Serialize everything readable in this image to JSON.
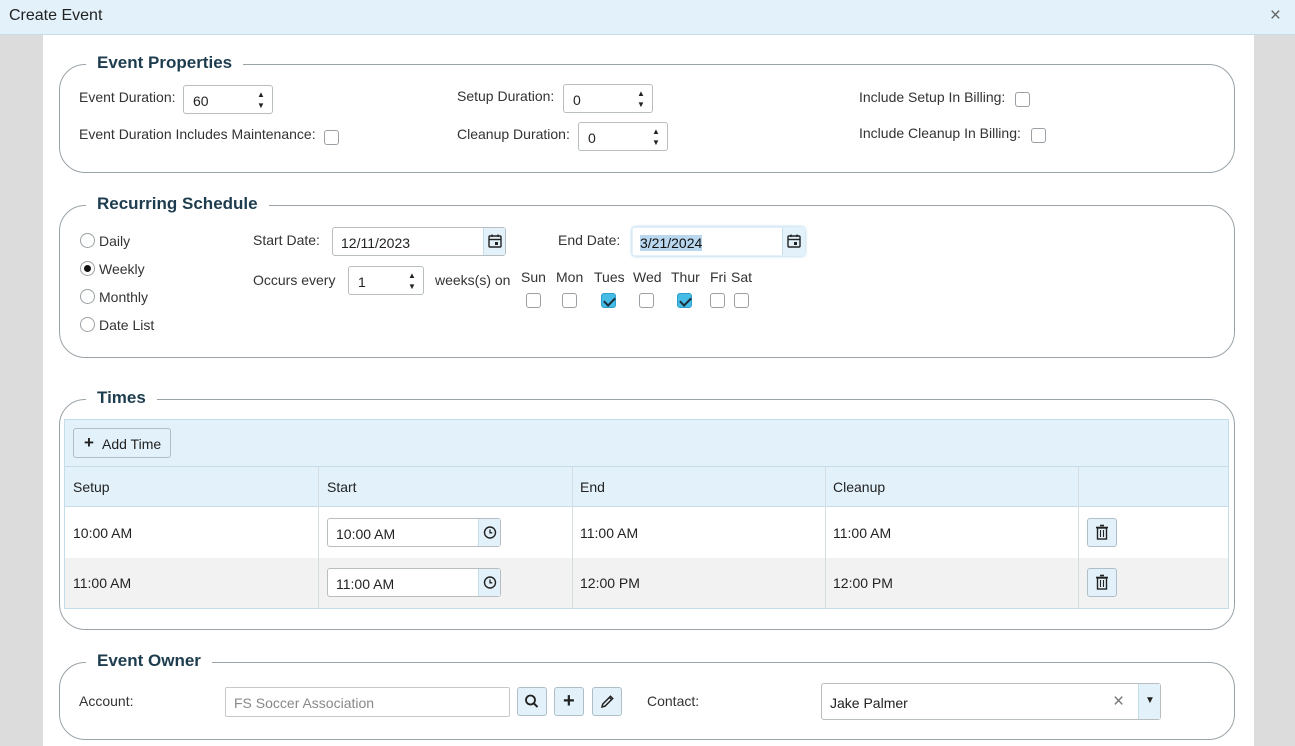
{
  "window": {
    "title": "Create Event",
    "close_glyph": "×"
  },
  "event_properties": {
    "legend": "Event Properties",
    "event_duration_label": "Event Duration:",
    "event_duration_value": "60",
    "setup_duration_label": "Setup Duration:",
    "setup_duration_value": "0",
    "include_setup_billing_label": "Include Setup In Billing:",
    "include_setup_billing_checked": false,
    "duration_includes_maintenance_label": "Event Duration Includes Maintenance:",
    "duration_includes_maintenance_checked": false,
    "cleanup_duration_label": "Cleanup Duration:",
    "cleanup_duration_value": "0",
    "include_cleanup_billing_label": "Include Cleanup In Billing:",
    "include_cleanup_billing_checked": false
  },
  "recurring_schedule": {
    "legend": "Recurring Schedule",
    "frequency_options": [
      {
        "label": "Daily",
        "selected": false
      },
      {
        "label": "Weekly",
        "selected": true
      },
      {
        "label": "Monthly",
        "selected": false
      },
      {
        "label": "Date List",
        "selected": false
      }
    ],
    "start_date_label": "Start Date:",
    "start_date_value": "12/11/2023",
    "end_date_label": "End Date:",
    "end_date_value": "3/21/2024",
    "occurs_every_label": "Occurs every",
    "occurs_every_value": "1",
    "weeks_on_label": "weeks(s) on",
    "days": [
      {
        "label": "Sun",
        "checked": false
      },
      {
        "label": "Mon",
        "checked": false
      },
      {
        "label": "Tues",
        "checked": true
      },
      {
        "label": "Wed",
        "checked": false
      },
      {
        "label": "Thur",
        "checked": true
      },
      {
        "label": "Fri",
        "checked": false
      },
      {
        "label": "Sat",
        "checked": false
      }
    ]
  },
  "times": {
    "legend": "Times",
    "add_time_label": "Add Time",
    "columns": [
      "Setup",
      "Start",
      "End",
      "Cleanup"
    ],
    "rows": [
      {
        "setup": "10:00 AM",
        "start": "10:00 AM",
        "end": "11:00 AM",
        "cleanup": "11:00 AM"
      },
      {
        "setup": "11:00 AM",
        "start": "11:00 AM",
        "end": "12:00 PM",
        "cleanup": "12:00 PM"
      }
    ]
  },
  "event_owner": {
    "legend": "Event Owner",
    "account_label": "Account:",
    "account_placeholder": "FS Soccer Association",
    "contact_label": "Contact:",
    "contact_value": "Jake Palmer",
    "clear_glyph": "×"
  },
  "colors": {
    "header_bg": "#e3f2fa",
    "checkbox_checked": "#45bbe6",
    "legend_text": "#1d3d4f"
  }
}
